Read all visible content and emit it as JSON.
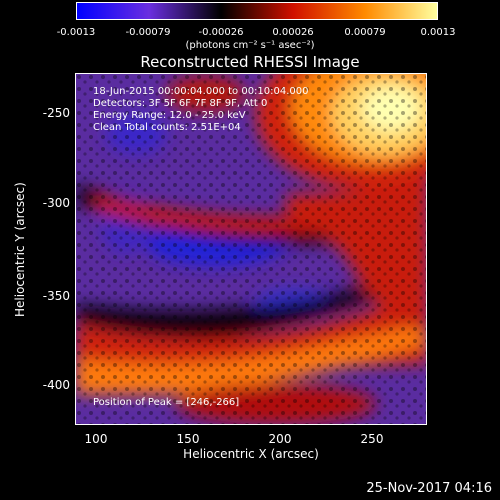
{
  "colorbar": {
    "ticks": [
      "-0.0013",
      "-0.00079",
      "-0.00026",
      "0.00026",
      "0.00079",
      "0.0013"
    ],
    "units": "(photons cm⁻² s⁻¹ asec⁻²)",
    "colors": [
      "#0000ff",
      "#6a2ee0",
      "#000000",
      "#d01000",
      "#ff8a00",
      "#ffffa0"
    ]
  },
  "title": "Reconstructed RHESSI Image",
  "info": {
    "line1": "18-Jun-2015 00:00:04.000 to 00:10:04.000",
    "line2": "Detectors: 3F 5F 6F 7F 8F 9F, Att 0",
    "line3": "Energy Range: 12.0 - 25.0 keV",
    "line4": "Clean    Total counts: 2.51E+04",
    "peak": "Position of Peak = [246,-266]"
  },
  "axes": {
    "xlabel": "Heliocentric X (arcsec)",
    "ylabel": "Heliocentric Y (arcsec)",
    "xticks": [
      "100",
      "150",
      "200",
      "250"
    ],
    "yticks": [
      "-250",
      "-300",
      "-350",
      "-400"
    ]
  },
  "timestamp": "25-Nov-2017 04:16"
}
